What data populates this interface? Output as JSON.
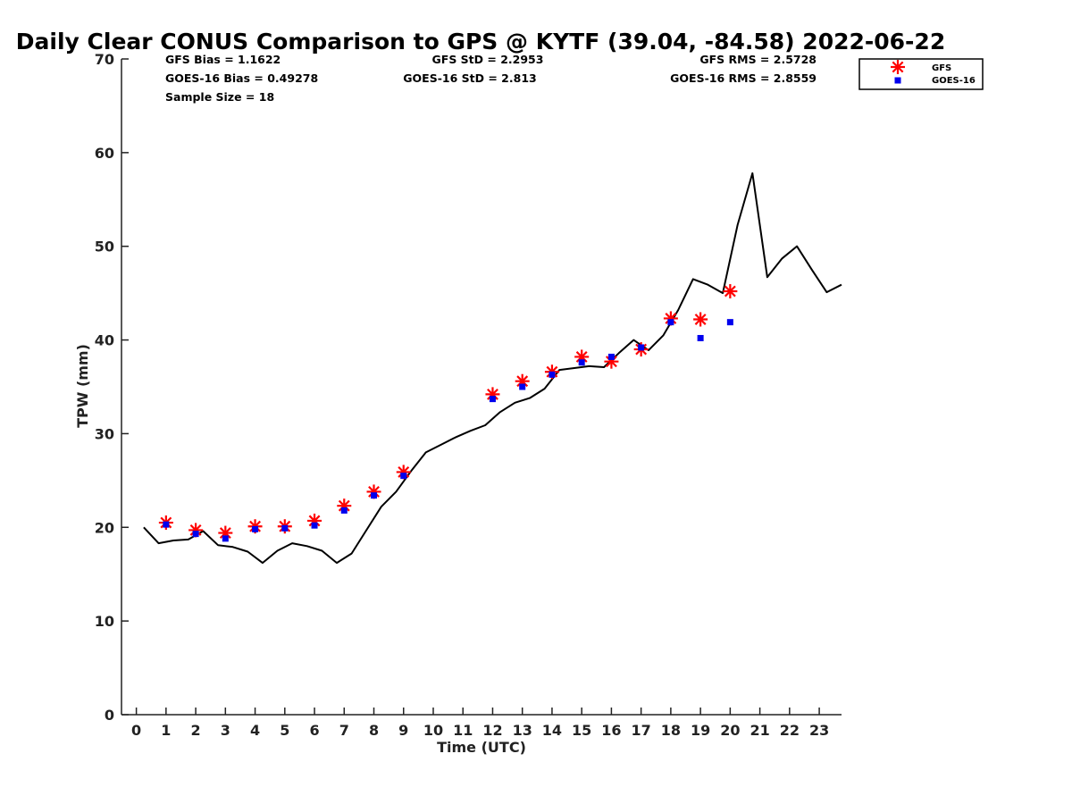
{
  "chart_data": {
    "type": "line",
    "title": "Daily Clear CONUS Comparison to GPS @ KYTF (39.04, -84.58) 2022-06-22",
    "xlabel": "Time (UTC)",
    "ylabel": "TPW (mm)",
    "xlim": [
      -0.5,
      23.75
    ],
    "ylim": [
      0,
      70
    ],
    "xticks": [
      "0",
      "1",
      "2",
      "3",
      "4",
      "5",
      "6",
      "7",
      "8",
      "9",
      "10",
      "11",
      "12",
      "13",
      "14",
      "15",
      "16",
      "17",
      "18",
      "19",
      "20",
      "21",
      "22",
      "23"
    ],
    "yticks": [
      "0",
      "10",
      "20",
      "30",
      "40",
      "50",
      "60",
      "70"
    ],
    "grid": false,
    "legend_position": "top-right",
    "stats": {
      "gfs_bias": "GFS Bias = 1.1622",
      "goes_bias": "GOES-16 Bias = 0.49278",
      "sample_size": "Sample Size = 18",
      "gfs_std": "GFS StD = 2.2953",
      "goes_std": "GOES-16 StD = 2.813",
      "gfs_rms": "GFS RMS = 2.5728",
      "goes_rms": "GOES-16 RMS = 2.8559"
    },
    "series": [
      {
        "kind": "line",
        "color": "#000000",
        "x": [
          0.25,
          0.75,
          1.25,
          1.75,
          2.25,
          2.75,
          3.25,
          3.75,
          4.25,
          4.75,
          5.25,
          5.75,
          6.25,
          6.75,
          7.25,
          7.75,
          8.25,
          8.75,
          9.25,
          9.75,
          10.25,
          10.75,
          11.25,
          11.75,
          12.25,
          12.75,
          13.25,
          13.75,
          14.25,
          14.75,
          15.25,
          15.75,
          16.25,
          16.75,
          17.25,
          17.75,
          18.25,
          18.75,
          19.25,
          19.75,
          20.25,
          20.75,
          21.25,
          21.75,
          22.25,
          22.75,
          23.25,
          23.75
        ],
        "y": [
          20.0,
          18.3,
          18.6,
          18.7,
          19.6,
          18.1,
          17.9,
          17.4,
          16.2,
          17.5,
          18.3,
          18.0,
          17.5,
          16.2,
          17.2,
          19.7,
          22.2,
          23.8,
          26.0,
          28.0,
          28.8,
          29.6,
          30.3,
          30.9,
          32.3,
          33.3,
          33.8,
          34.8,
          36.8,
          37.0,
          37.2,
          37.1,
          38.6,
          40.0,
          38.9,
          40.5,
          43.2,
          46.5,
          45.9,
          45.0,
          52.3,
          57.8,
          46.7,
          48.7,
          50.0,
          47.5,
          45.1,
          45.9
        ]
      },
      {
        "name": "GFS",
        "kind": "marker",
        "marker": "asterisk",
        "color": "#ff0000",
        "x": [
          1,
          2,
          3,
          4,
          5,
          6,
          7,
          8,
          9,
          12,
          13,
          14,
          15,
          16,
          17,
          18,
          19,
          20
        ],
        "y": [
          20.5,
          19.7,
          19.4,
          20.1,
          20.1,
          20.7,
          22.3,
          23.8,
          25.9,
          34.2,
          35.6,
          36.6,
          38.2,
          37.7,
          39.0,
          42.3,
          42.2,
          45.2
        ]
      },
      {
        "name": "GOES-16",
        "kind": "marker",
        "marker": "square",
        "color": "#0000ee",
        "x": [
          1,
          2,
          3,
          4,
          5,
          6,
          7,
          8,
          9,
          12,
          13,
          14,
          15,
          16,
          17,
          18,
          19,
          20
        ],
        "y": [
          20.3,
          19.3,
          18.8,
          19.8,
          19.9,
          20.2,
          21.8,
          23.4,
          25.5,
          33.7,
          35.0,
          36.3,
          37.6,
          38.2,
          39.2,
          41.9,
          40.2,
          41.9
        ]
      }
    ]
  }
}
